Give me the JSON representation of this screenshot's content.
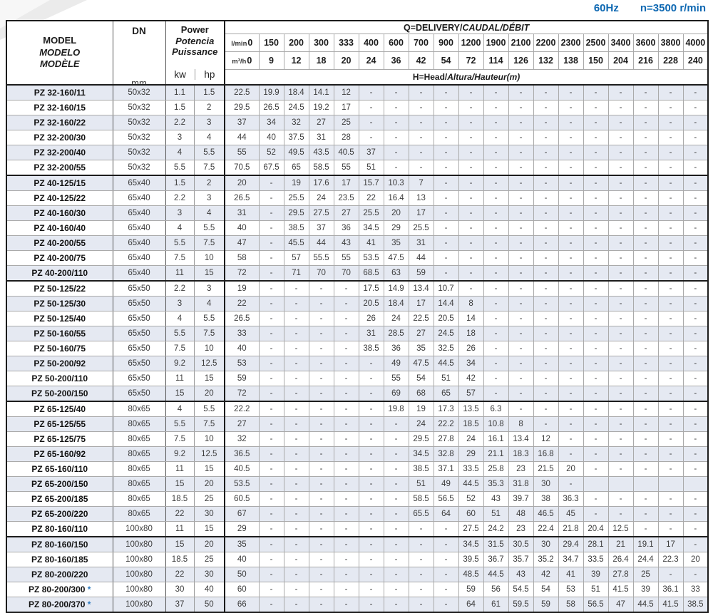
{
  "note": {
    "frequency": "60Hz",
    "speed": "n=3500 r/min"
  },
  "colors": {
    "accent_blue": "#0e68b2",
    "row_stripe": "#e5e9f2",
    "border_dark": "#1c1c1c",
    "grid_light": "#aaaaaa"
  },
  "table": {
    "model_header": {
      "en": "MODEL",
      "es": "MODELO",
      "fr": "MODÈLE"
    },
    "dn_header": {
      "label": "DN",
      "unit": "mm"
    },
    "power_header": {
      "en": "Power",
      "es": "Potencia",
      "fr": "Puissance",
      "kw": "kw",
      "hp": "hp"
    },
    "q_header": {
      "title": "Q=DELIVERY/",
      "title_it": "CAUDAL/DÉBIT",
      "lmin_label": "l/min",
      "m3h_label": "m³/h",
      "head_label": "H=Head/",
      "head_label_it": "Altura/Hauteur(m)"
    },
    "q_lmin": [
      "0",
      "150",
      "200",
      "300",
      "333",
      "400",
      "600",
      "700",
      "900",
      "1200",
      "1900",
      "2100",
      "2200",
      "2300",
      "2500",
      "3400",
      "3600",
      "3800",
      "4000"
    ],
    "q_m3h": [
      "0",
      "9",
      "12",
      "18",
      "20",
      "24",
      "36",
      "42",
      "54",
      "72",
      "114",
      "126",
      "132",
      "138",
      "150",
      "204",
      "216",
      "228",
      "240"
    ],
    "rows": [
      {
        "model": "PZ 32-160/11",
        "star": "",
        "dn": "50x32",
        "kw": "1.1",
        "hp": "1.5",
        "group_end": false,
        "head": [
          "22.5",
          "19.9",
          "18.4",
          "14.1",
          "12",
          "-",
          "-",
          "-",
          "-",
          "-",
          "-",
          "-",
          "-",
          "-",
          "-",
          "-",
          "-",
          "-",
          "-"
        ]
      },
      {
        "model": "PZ 32-160/15",
        "star": "",
        "dn": "50x32",
        "kw": "1.5",
        "hp": "2",
        "group_end": false,
        "head": [
          "29.5",
          "26.5",
          "24.5",
          "19.2",
          "17",
          "-",
          "-",
          "-",
          "-",
          "-",
          "-",
          "-",
          "-",
          "-",
          "-",
          "-",
          "-",
          "-",
          "-"
        ]
      },
      {
        "model": "PZ 32-160/22",
        "star": "",
        "dn": "50x32",
        "kw": "2.2",
        "hp": "3",
        "group_end": false,
        "head": [
          "37",
          "34",
          "32",
          "27",
          "25",
          "-",
          "-",
          "-",
          "-",
          "-",
          "-",
          "-",
          "-",
          "-",
          "-",
          "-",
          "-",
          "-",
          "-"
        ]
      },
      {
        "model": "PZ 32-200/30",
        "star": "",
        "dn": "50x32",
        "kw": "3",
        "hp": "4",
        "group_end": false,
        "head": [
          "44",
          "40",
          "37.5",
          "31",
          "28",
          "-",
          "-",
          "-",
          "-",
          "-",
          "-",
          "-",
          "-",
          "-",
          "-",
          "-",
          "-",
          "-",
          "-"
        ]
      },
      {
        "model": "PZ 32-200/40",
        "star": "",
        "dn": "50x32",
        "kw": "4",
        "hp": "5.5",
        "group_end": false,
        "head": [
          "55",
          "52",
          "49.5",
          "43.5",
          "40.5",
          "37",
          "-",
          "-",
          "-",
          "-",
          "-",
          "-",
          "-",
          "-",
          "-",
          "-",
          "-",
          "-",
          "-"
        ]
      },
      {
        "model": "PZ 32-200/55",
        "star": "",
        "dn": "50x32",
        "kw": "5.5",
        "hp": "7.5",
        "group_end": true,
        "head": [
          "70.5",
          "67.5",
          "65",
          "58.5",
          "55",
          "51",
          "-",
          "-",
          "-",
          "-",
          "-",
          "-",
          "-",
          "-",
          "-",
          "-",
          "-",
          "-",
          "-"
        ]
      },
      {
        "model": "PZ 40-125/15",
        "star": "",
        "dn": "65x40",
        "kw": "1.5",
        "hp": "2",
        "group_end": false,
        "head": [
          "20",
          "-",
          "19",
          "17.6",
          "17",
          "15.7",
          "10.3",
          "7",
          "-",
          "-",
          "-",
          "-",
          "-",
          "-",
          "-",
          "-",
          "-",
          "-",
          "-"
        ]
      },
      {
        "model": "PZ 40-125/22",
        "star": "",
        "dn": "65x40",
        "kw": "2.2",
        "hp": "3",
        "group_end": false,
        "head": [
          "26.5",
          "-",
          "25.5",
          "24",
          "23.5",
          "22",
          "16.4",
          "13",
          "-",
          "-",
          "-",
          "-",
          "-",
          "-",
          "-",
          "-",
          "-",
          "-",
          "-"
        ]
      },
      {
        "model": "PZ 40-160/30",
        "star": "",
        "dn": "65x40",
        "kw": "3",
        "hp": "4",
        "group_end": false,
        "head": [
          "31",
          "-",
          "29.5",
          "27.5",
          "27",
          "25.5",
          "20",
          "17",
          "-",
          "-",
          "-",
          "-",
          "-",
          "-",
          "-",
          "-",
          "-",
          "-",
          "-"
        ]
      },
      {
        "model": "PZ 40-160/40",
        "star": "",
        "dn": "65x40",
        "kw": "4",
        "hp": "5.5",
        "group_end": false,
        "head": [
          "40",
          "-",
          "38.5",
          "37",
          "36",
          "34.5",
          "29",
          "25.5",
          "-",
          "-",
          "-",
          "-",
          "-",
          "-",
          "-",
          "-",
          "-",
          "-",
          "-"
        ]
      },
      {
        "model": "PZ 40-200/55",
        "star": "",
        "dn": "65x40",
        "kw": "5.5",
        "hp": "7.5",
        "group_end": false,
        "head": [
          "47",
          "-",
          "45.5",
          "44",
          "43",
          "41",
          "35",
          "31",
          "-",
          "-",
          "-",
          "-",
          "-",
          "-",
          "-",
          "-",
          "-",
          "-",
          "-"
        ]
      },
      {
        "model": "PZ 40-200/75",
        "star": "",
        "dn": "65x40",
        "kw": "7.5",
        "hp": "10",
        "group_end": false,
        "head": [
          "58",
          "-",
          "57",
          "55.5",
          "55",
          "53.5",
          "47.5",
          "44",
          "-",
          "-",
          "-",
          "-",
          "-",
          "-",
          "-",
          "-",
          "-",
          "-",
          "-"
        ]
      },
      {
        "model": "PZ 40-200/110",
        "star": "",
        "dn": "65x40",
        "kw": "11",
        "hp": "15",
        "group_end": true,
        "head": [
          "72",
          "-",
          "71",
          "70",
          "70",
          "68.5",
          "63",
          "59",
          "-",
          "-",
          "-",
          "-",
          "-",
          "-",
          "-",
          "-",
          "-",
          "-",
          "-"
        ]
      },
      {
        "model": "PZ 50-125/22",
        "star": "",
        "dn": "65x50",
        "kw": "2.2",
        "hp": "3",
        "group_end": false,
        "head": [
          "19",
          "-",
          "-",
          "-",
          "-",
          "17.5",
          "14.9",
          "13.4",
          "10.7",
          "-",
          "-",
          "-",
          "-",
          "-",
          "-",
          "-",
          "-",
          "-",
          "-"
        ]
      },
      {
        "model": "PZ 50-125/30",
        "star": "",
        "dn": "65x50",
        "kw": "3",
        "hp": "4",
        "group_end": false,
        "head": [
          "22",
          "-",
          "-",
          "-",
          "-",
          "20.5",
          "18.4",
          "17",
          "14.4",
          "8",
          "-",
          "-",
          "-",
          "-",
          "-",
          "-",
          "-",
          "-",
          "-"
        ]
      },
      {
        "model": "PZ 50-125/40",
        "star": "",
        "dn": "65x50",
        "kw": "4",
        "hp": "5.5",
        "group_end": false,
        "head": [
          "26.5",
          "-",
          "-",
          "-",
          "-",
          "26",
          "24",
          "22.5",
          "20.5",
          "14",
          "-",
          "-",
          "-",
          "-",
          "-",
          "-",
          "-",
          "-",
          "-"
        ]
      },
      {
        "model": "PZ 50-160/55",
        "star": "",
        "dn": "65x50",
        "kw": "5.5",
        "hp": "7.5",
        "group_end": false,
        "head": [
          "33",
          "-",
          "-",
          "-",
          "-",
          "31",
          "28.5",
          "27",
          "24.5",
          "18",
          "-",
          "-",
          "-",
          "-",
          "-",
          "-",
          "-",
          "-",
          "-"
        ]
      },
      {
        "model": "PZ 50-160/75",
        "star": "",
        "dn": "65x50",
        "kw": "7.5",
        "hp": "10",
        "group_end": false,
        "head": [
          "40",
          "-",
          "-",
          "-",
          "-",
          "38.5",
          "36",
          "35",
          "32.5",
          "26",
          "-",
          "-",
          "-",
          "-",
          "-",
          "-",
          "-",
          "-",
          "-"
        ]
      },
      {
        "model": "PZ 50-200/92",
        "star": "",
        "dn": "65x50",
        "kw": "9.2",
        "hp": "12.5",
        "group_end": false,
        "head": [
          "53",
          "-",
          "-",
          "-",
          "-",
          "-",
          "49",
          "47.5",
          "44.5",
          "34",
          "-",
          "-",
          "-",
          "-",
          "-",
          "-",
          "-",
          "-",
          "-"
        ]
      },
      {
        "model": "PZ 50-200/110",
        "star": "",
        "dn": "65x50",
        "kw": "11",
        "hp": "15",
        "group_end": false,
        "head": [
          "59",
          "-",
          "-",
          "-",
          "-",
          "-",
          "55",
          "54",
          "51",
          "42",
          "-",
          "-",
          "-",
          "-",
          "-",
          "-",
          "-",
          "-",
          "-"
        ]
      },
      {
        "model": "PZ 50-200/150",
        "star": "",
        "dn": "65x50",
        "kw": "15",
        "hp": "20",
        "group_end": true,
        "head": [
          "72",
          "-",
          "-",
          "-",
          "-",
          "-",
          "69",
          "68",
          "65",
          "57",
          "-",
          "-",
          "-",
          "-",
          "-",
          "-",
          "-",
          "-",
          "-"
        ]
      },
      {
        "model": "PZ 65-125/40",
        "star": "",
        "dn": "80x65",
        "kw": "4",
        "hp": "5.5",
        "group_end": false,
        "head": [
          "22.2",
          "-",
          "-",
          "-",
          "-",
          "-",
          "19.8",
          "19",
          "17.3",
          "13.5",
          "6.3",
          "-",
          "-",
          "-",
          "-",
          "-",
          "-",
          "-",
          "-"
        ]
      },
      {
        "model": "PZ 65-125/55",
        "star": "",
        "dn": "80x65",
        "kw": "5.5",
        "hp": "7.5",
        "group_end": false,
        "head": [
          "27",
          "-",
          "-",
          "-",
          "-",
          "-",
          "-",
          "24",
          "22.2",
          "18.5",
          "10.8",
          "8",
          "-",
          "-",
          "-",
          "-",
          "-",
          "-",
          "-"
        ]
      },
      {
        "model": "PZ 65-125/75",
        "star": "",
        "dn": "80x65",
        "kw": "7.5",
        "hp": "10",
        "group_end": false,
        "head": [
          "32",
          "-",
          "-",
          "-",
          "-",
          "-",
          "-",
          "29.5",
          "27.8",
          "24",
          "16.1",
          "13.4",
          "12",
          "-",
          "-",
          "-",
          "-",
          "-",
          "-"
        ]
      },
      {
        "model": "PZ 65-160/92",
        "star": "",
        "dn": "80x65",
        "kw": "9.2",
        "hp": "12.5",
        "group_end": false,
        "head": [
          "36.5",
          "-",
          "-",
          "-",
          "-",
          "-",
          "-",
          "34.5",
          "32.8",
          "29",
          "21.1",
          "18.3",
          "16.8",
          "-",
          "-",
          "-",
          "-",
          "-",
          "-"
        ]
      },
      {
        "model": "PZ 65-160/110",
        "star": "",
        "dn": "80x65",
        "kw": "11",
        "hp": "15",
        "group_end": false,
        "head": [
          "40.5",
          "-",
          "-",
          "-",
          "-",
          "-",
          "-",
          "38.5",
          "37.1",
          "33.5",
          "25.8",
          "23",
          "21.5",
          "20",
          "-",
          "-",
          "-",
          "-",
          "-"
        ]
      },
      {
        "model": "PZ 65-200/150",
        "star": "",
        "dn": "80x65",
        "kw": "15",
        "hp": "20",
        "group_end": false,
        "head": [
          "53.5",
          "-",
          "-",
          "-",
          "-",
          "-",
          "-",
          "51",
          "49",
          "44.5",
          "35.3",
          "31.8",
          "30",
          "-",
          "",
          "",
          "",
          "",
          ""
        ]
      },
      {
        "model": "PZ 65-200/185",
        "star": "",
        "dn": "80x65",
        "kw": "18.5",
        "hp": "25",
        "group_end": false,
        "head": [
          "60.5",
          "-",
          "-",
          "-",
          "-",
          "-",
          "-",
          "58.5",
          "56.5",
          "52",
          "43",
          "39.7",
          "38",
          "36.3",
          "-",
          "-",
          "-",
          "-",
          "-"
        ]
      },
      {
        "model": "PZ 65-200/220",
        "star": "",
        "dn": "80x65",
        "kw": "22",
        "hp": "30",
        "group_end": false,
        "head": [
          "67",
          "-",
          "-",
          "-",
          "-",
          "-",
          "-",
          "65.5",
          "64",
          "60",
          "51",
          "48",
          "46.5",
          "45",
          "-",
          "-",
          "-",
          "-",
          "-"
        ]
      },
      {
        "model": "PZ 80-160/110",
        "star": "",
        "dn": "100x80",
        "kw": "11",
        "hp": "15",
        "group_end": true,
        "head": [
          "29",
          "-",
          "-",
          "-",
          "-",
          "-",
          "-",
          "-",
          "-",
          "27.5",
          "24.2",
          "23",
          "22.4",
          "21.8",
          "20.4",
          "12.5",
          "-",
          "-",
          "-"
        ]
      },
      {
        "model": "PZ 80-160/150",
        "star": "",
        "dn": "100x80",
        "kw": "15",
        "hp": "20",
        "group_end": false,
        "head": [
          "35",
          "-",
          "-",
          "-",
          "-",
          "-",
          "-",
          "-",
          "-",
          "34.5",
          "31.5",
          "30.5",
          "30",
          "29.4",
          "28.1",
          "21",
          "19.1",
          "17",
          "-"
        ]
      },
      {
        "model": "PZ 80-160/185",
        "star": "",
        "dn": "100x80",
        "kw": "18.5",
        "hp": "25",
        "group_end": false,
        "head": [
          "40",
          "-",
          "-",
          "-",
          "-",
          "-",
          "-",
          "-",
          "-",
          "39.5",
          "36.7",
          "35.7",
          "35.2",
          "34.7",
          "33.5",
          "26.4",
          "24.4",
          "22.3",
          "20"
        ]
      },
      {
        "model": "PZ 80-200/220",
        "star": "",
        "dn": "100x80",
        "kw": "22",
        "hp": "30",
        "group_end": false,
        "head": [
          "50",
          "-",
          "-",
          "-",
          "-",
          "-",
          "-",
          "-",
          "-",
          "48.5",
          "44.5",
          "43",
          "42",
          "41",
          "39",
          "27.8",
          "25",
          "-",
          "-"
        ]
      },
      {
        "model": "PZ 80-200/300",
        "star": "*",
        "dn": "100x80",
        "kw": "30",
        "hp": "40",
        "group_end": false,
        "head": [
          "60",
          "-",
          "-",
          "-",
          "-",
          "-",
          "-",
          "-",
          "-",
          "59",
          "56",
          "54.5",
          "54",
          "53",
          "51",
          "41.5",
          "39",
          "36.1",
          "33"
        ]
      },
      {
        "model": "PZ 80-200/370",
        "star": "*",
        "dn": "100x80",
        "kw": "37",
        "hp": "50",
        "group_end": false,
        "head": [
          "66",
          "-",
          "-",
          "-",
          "-",
          "-",
          "-",
          "-",
          "-",
          "64",
          "61",
          "59.5",
          "59",
          "58",
          "56.5",
          "47",
          "44.5",
          "41.5",
          "38.5"
        ]
      }
    ]
  }
}
